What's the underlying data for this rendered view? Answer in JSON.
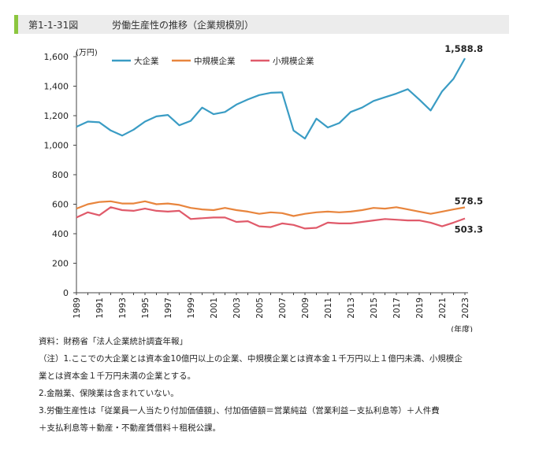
{
  "header": {
    "figure_number": "第1-1-31図",
    "title": "労働生産性の推移（企業規模別）"
  },
  "chart_data": {
    "type": "line",
    "title": "労働生産性の推移（企業規模別）",
    "y_unit_label": "(万円)",
    "x_unit_label": "(年度)",
    "ylim": [
      0,
      1600
    ],
    "y_ticks": [
      0,
      200,
      400,
      600,
      800,
      1000,
      1200,
      1400,
      1600
    ],
    "y_tick_labels": [
      "0",
      "200",
      "400",
      "600",
      "800",
      "1,000",
      "1,200",
      "1,400",
      "1,600"
    ],
    "x": [
      1989,
      1990,
      1991,
      1992,
      1993,
      1994,
      1995,
      1996,
      1997,
      1998,
      1999,
      2000,
      2001,
      2002,
      2003,
      2004,
      2005,
      2006,
      2007,
      2008,
      2009,
      2010,
      2011,
      2012,
      2013,
      2014,
      2015,
      2016,
      2017,
      2018,
      2019,
      2020,
      2021,
      2022,
      2023
    ],
    "x_tick_labels": [
      "1989",
      "1991",
      "1993",
      "1995",
      "1997",
      "1999",
      "2001",
      "2003",
      "2005",
      "2007",
      "2009",
      "2011",
      "2013",
      "2015",
      "2017",
      "2019",
      "2021",
      "2023"
    ],
    "grid": false,
    "legend_position": "top-left",
    "series": [
      {
        "name": "大企業",
        "color": "#3a9cc4",
        "end_label": "1,588.8",
        "values": [
          1125,
          1160,
          1155,
          1100,
          1065,
          1105,
          1160,
          1195,
          1205,
          1135,
          1165,
          1255,
          1210,
          1225,
          1275,
          1310,
          1340,
          1355,
          1358,
          1100,
          1045,
          1180,
          1120,
          1150,
          1225,
          1255,
          1300,
          1325,
          1350,
          1380,
          1310,
          1235,
          1365,
          1450,
          1588.8
        ]
      },
      {
        "name": "中規模企業",
        "color": "#e8853d",
        "end_label": "578.5",
        "values": [
          570,
          600,
          615,
          620,
          605,
          605,
          620,
          600,
          605,
          595,
          575,
          565,
          560,
          575,
          560,
          550,
          535,
          545,
          540,
          520,
          535,
          545,
          550,
          545,
          550,
          560,
          575,
          570,
          580,
          565,
          550,
          535,
          550,
          565,
          578.5
        ]
      },
      {
        "name": "小規模企業",
        "color": "#e05a6a",
        "end_label": "503.3",
        "values": [
          510,
          545,
          525,
          580,
          560,
          555,
          570,
          555,
          550,
          555,
          500,
          505,
          510,
          510,
          480,
          485,
          450,
          445,
          470,
          460,
          435,
          440,
          475,
          470,
          470,
          480,
          490,
          500,
          495,
          490,
          490,
          475,
          450,
          475,
          503.3
        ]
      }
    ]
  },
  "notes": {
    "source": "資料：財務省「法人企業統計調査年報」",
    "note1_line1": "（注）1.ここでの大企業とは資本金10億円以上の企業、中規模企業とは資本金１千万円以上１億円未満、小規模企",
    "note1_line2": "業とは資本金１千万円未満の企業とする。",
    "note2": "2.金融業、保険業は含まれていない。",
    "note3_line1": "3.労働生産性は「従業員一人当たり付加価値額」、付加価値額＝営業純益（営業利益－支払利息等）＋人件費",
    "note3_line2": "＋支払利息等＋動産・不動産賃借料＋租税公課。"
  }
}
